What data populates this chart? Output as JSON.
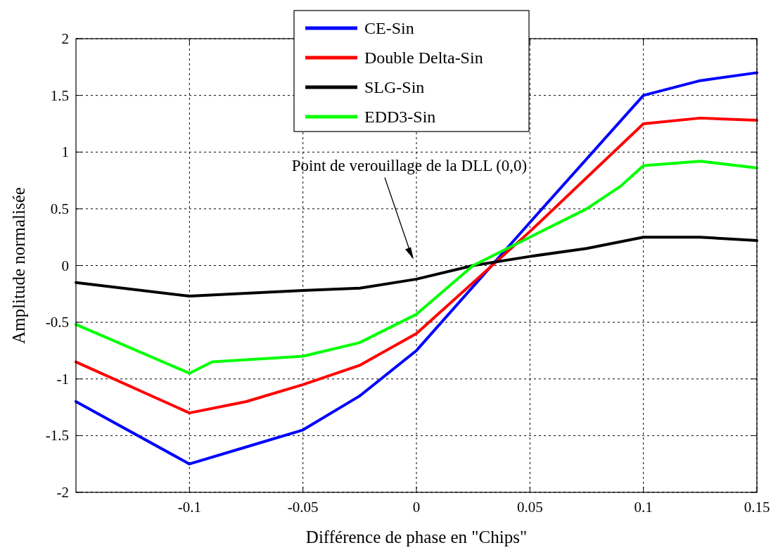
{
  "chart_data": {
    "type": "line",
    "xlabel": "Différence de phase en \"Chips\"",
    "ylabel": "Amplitude normalisée",
    "xlim": [
      -0.15,
      0.15
    ],
    "xticks": [
      -0.1,
      -0.05,
      0,
      0.05,
      0.1,
      0.15
    ],
    "ylim": [
      -2,
      2
    ],
    "yticks": [
      -2,
      -1.5,
      -1,
      -0.5,
      0,
      0.5,
      1,
      1.5,
      2
    ],
    "grid": true,
    "legend": "top",
    "line_style": "solid",
    "annotations": [
      "Point de verouillage de la DLL (0,0)"
    ],
    "series": [
      {
        "name": "CE-Sin",
        "color": "#0000ff",
        "x": [
          -0.15,
          -0.1,
          -0.075,
          -0.05,
          -0.025,
          0,
          0.05,
          0.1,
          0.125,
          0.15
        ],
        "values": [
          -1.2,
          -1.75,
          -1.6,
          -1.45,
          -1.15,
          -0.75,
          0.38,
          1.5,
          1.63,
          1.7
        ]
      },
      {
        "name": "Double Delta-Sin",
        "color": "#ff0000",
        "x": [
          -0.15,
          -0.1,
          -0.075,
          -0.05,
          -0.025,
          0,
          0.05,
          0.1,
          0.125,
          0.15
        ],
        "values": [
          -0.85,
          -1.3,
          -1.2,
          -1.05,
          -0.88,
          -0.6,
          0.3,
          1.25,
          1.3,
          1.28
        ]
      },
      {
        "name": "SLG-Sin",
        "color": "#000000",
        "x": [
          -0.15,
          -0.1,
          -0.05,
          -0.025,
          0,
          0.025,
          0.05,
          0.075,
          0.1,
          0.125,
          0.15
        ],
        "values": [
          -0.15,
          -0.27,
          -0.22,
          -0.2,
          -0.12,
          0.0,
          0.08,
          0.15,
          0.25,
          0.25,
          0.22
        ]
      },
      {
        "name": "EDD3-Sin",
        "color": "#00ff00",
        "x": [
          -0.15,
          -0.1,
          -0.09,
          -0.05,
          -0.025,
          0,
          0.025,
          0.05,
          0.075,
          0.09,
          0.1,
          0.125,
          0.15
        ],
        "values": [
          -0.52,
          -0.95,
          -0.85,
          -0.8,
          -0.68,
          -0.43,
          0.0,
          0.25,
          0.5,
          0.7,
          0.88,
          0.92,
          0.86
        ]
      }
    ]
  }
}
